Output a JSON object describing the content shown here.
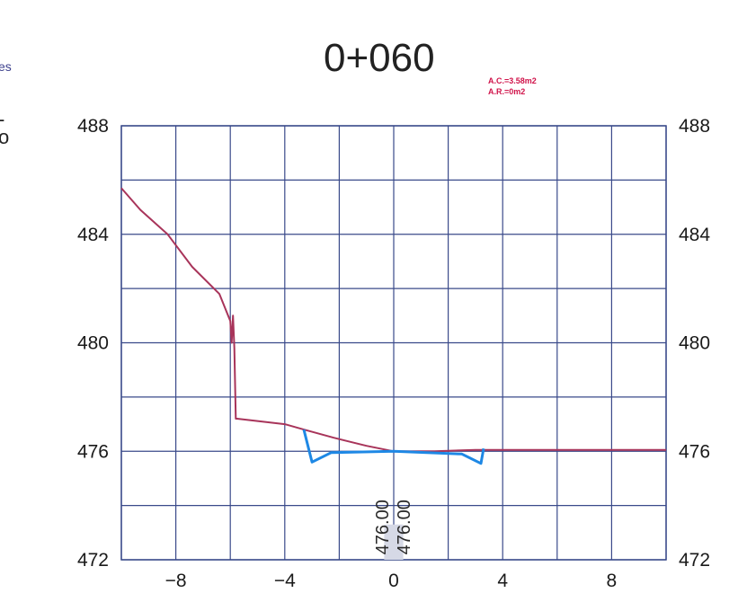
{
  "header": {
    "station": "0+060",
    "area_cut": "A.C.=3.58m2",
    "area_fill": "A.R.=0m2",
    "clipped_left": [
      "es",
      "-",
      "o"
    ]
  },
  "chart_data": {
    "type": "line",
    "xlim": [
      -10,
      10
    ],
    "ylim": [
      472,
      488
    ],
    "x_ticks": [
      "−8",
      "−4",
      "0",
      "4",
      "8"
    ],
    "x_tick_values": [
      -8,
      -4,
      0,
      4,
      8
    ],
    "y_ticks": [
      "488",
      "484",
      "480",
      "476",
      "472"
    ],
    "y_tick_values": [
      488,
      484,
      480,
      476,
      472
    ],
    "grid": true,
    "colors": {
      "terrain": "#a8345a",
      "design": "#1e88e5",
      "grid": "#3a4a8a"
    },
    "series": [
      {
        "key": "terrain",
        "x": [
          -10,
          -9.3,
          -8.3,
          -7.4,
          -6.4,
          -6.0,
          -5.95,
          -5.9,
          -5.85,
          -5.8,
          -5.75,
          -4.0,
          -3.3,
          -2.2,
          -1.0,
          0,
          1.5,
          3.0,
          10
        ],
        "y": [
          485.7,
          484.9,
          484.0,
          482.8,
          481.8,
          480.8,
          480.0,
          481.0,
          479.8,
          477.2,
          477.2,
          477.0,
          476.8,
          476.5,
          476.2,
          476.0,
          476.0,
          476.05,
          476.05
        ]
      },
      {
        "key": "design",
        "x": [
          -3.3,
          -3.0,
          -2.3,
          0,
          2.5,
          3.2,
          3.3
        ],
        "y": [
          476.8,
          475.6,
          475.95,
          476.0,
          475.9,
          475.55,
          476.1
        ]
      }
    ],
    "annotations": [
      "476.00",
      "476.00"
    ]
  }
}
